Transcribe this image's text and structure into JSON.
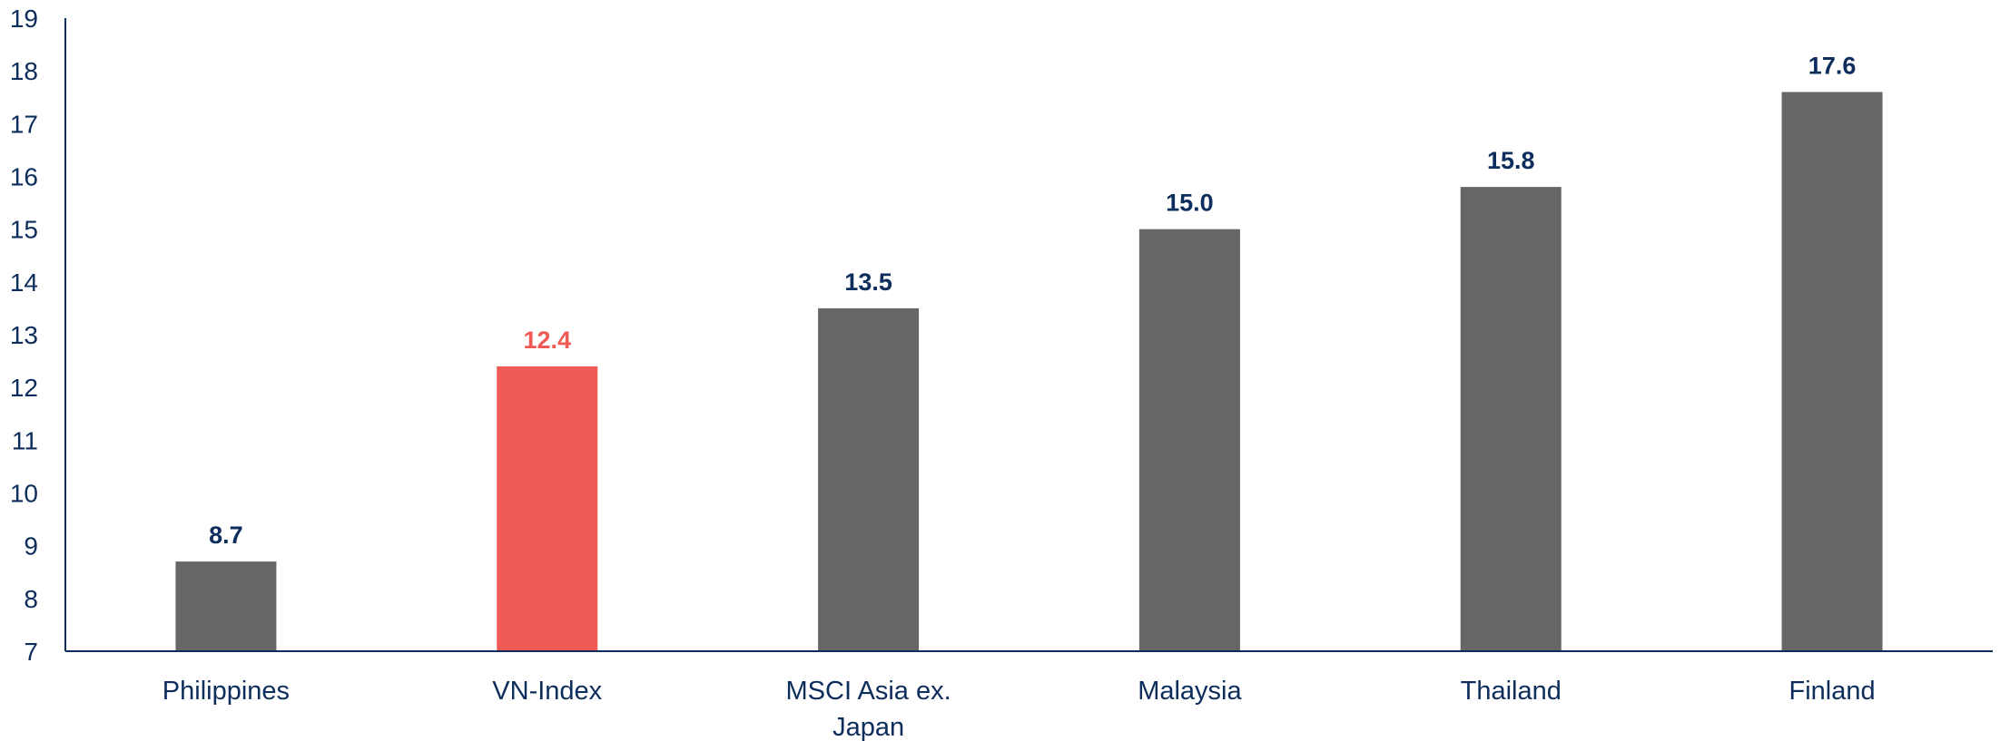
{
  "chart_data": {
    "type": "bar",
    "categories": [
      [
        "Philippines"
      ],
      [
        "VN-Index"
      ],
      [
        "MSCI Asia ex.",
        "Japan"
      ],
      [
        "Malaysia"
      ],
      [
        "Thailand"
      ],
      [
        "Finland"
      ]
    ],
    "values": [
      8.7,
      12.4,
      13.5,
      15.0,
      15.8,
      17.6
    ],
    "value_labels": [
      "8.7",
      "12.4",
      "13.5",
      "15.0",
      "15.8",
      "17.6"
    ],
    "highlight_index": 1,
    "ylim": [
      7,
      19
    ],
    "yticks": [
      "7",
      "8",
      "9",
      "10",
      "11",
      "12",
      "13",
      "14",
      "15",
      "16",
      "17",
      "18",
      "19"
    ],
    "grid": false,
    "colors": {
      "bar": "#666666",
      "highlight": "#f05a55",
      "axis": "#0d2d5c",
      "label": "#0d2d5c"
    }
  }
}
